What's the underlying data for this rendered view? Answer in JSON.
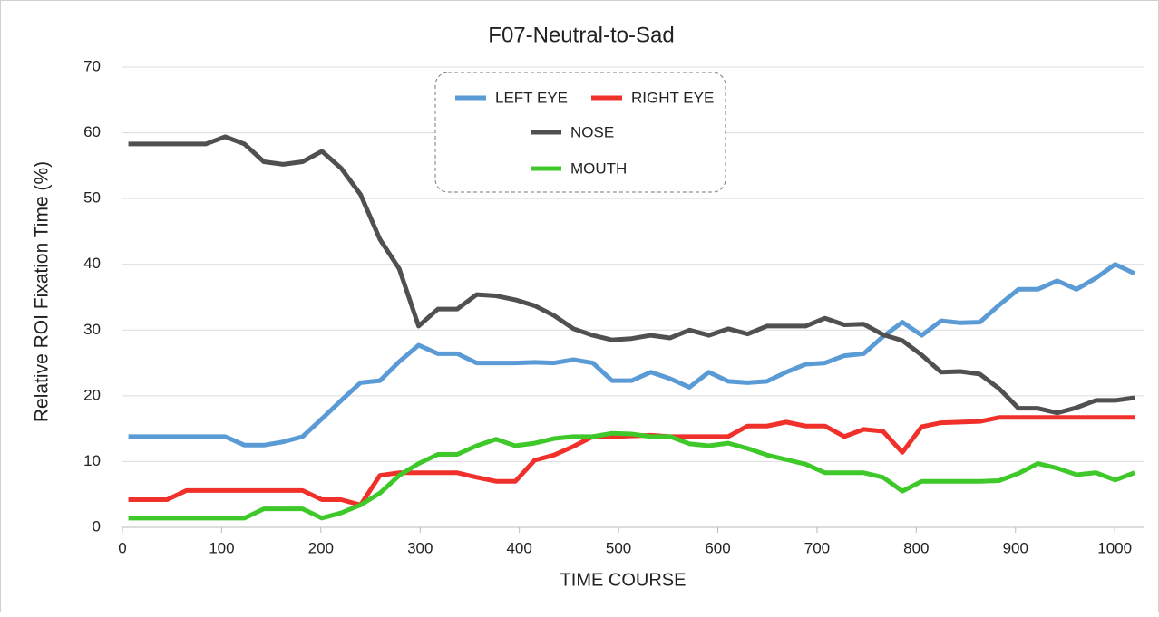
{
  "chart_data": {
    "type": "line",
    "title": "F07-Neutral-to-Sad",
    "x_label": "TIME  COURSE",
    "y_label": "Relative  ROI  Fixation  Time  (%)",
    "x": [
      6,
      25.5,
      45,
      64.5,
      84,
      103.5,
      123,
      142.5,
      162,
      181.5,
      201,
      220.5,
      240,
      259.5,
      279,
      298.5,
      318,
      337.5,
      357,
      376.5,
      396,
      415.5,
      435,
      454.5,
      474,
      493.5,
      513,
      532.5,
      552,
      571.5,
      591,
      610.5,
      630,
      649.5,
      669,
      688.5,
      708,
      727.5,
      747,
      766.5,
      786,
      805.5,
      825,
      844.5,
      864,
      883.5,
      903,
      922.5,
      942,
      961.5,
      981,
      1000.5,
      1020
    ],
    "series": [
      {
        "name": "LEFT EYE",
        "color": "#5b9bd5",
        "values": [
          13.8,
          13.8,
          13.8,
          13.8,
          13.8,
          13.8,
          12.5,
          12.5,
          13,
          13.8,
          16.5,
          19.3,
          22,
          22.3,
          25.2,
          27.7,
          26.4,
          26.4,
          25,
          25,
          25,
          25.1,
          25,
          25.5,
          25,
          22.3,
          22.3,
          23.6,
          22.6,
          21.3,
          23.6,
          22.2,
          22,
          22.2,
          23.6,
          24.8,
          25,
          26.1,
          26.4,
          29,
          31.2,
          29.2,
          31.4,
          31.1,
          31.2,
          33.8,
          36.2,
          36.2,
          37.5,
          36.2,
          37.9,
          40,
          38.6
        ]
      },
      {
        "name": "RIGHT EYE",
        "color": "#f0302a",
        "values": [
          4.2,
          4.2,
          4.2,
          5.6,
          5.6,
          5.6,
          5.6,
          5.6,
          5.6,
          5.6,
          4.2,
          4.2,
          3.4,
          7.9,
          8.3,
          8.3,
          8.3,
          8.3,
          7.6,
          7,
          7,
          10.2,
          11,
          12.3,
          13.8,
          13.8,
          13.9,
          14,
          13.8,
          13.8,
          13.8,
          13.8,
          15.4,
          15.4,
          16,
          15.4,
          15.4,
          13.8,
          14.9,
          14.6,
          11.4,
          15.3,
          15.9,
          16,
          16.1,
          16.7,
          16.7,
          16.7,
          16.7,
          16.7,
          16.7,
          16.7,
          16.7
        ]
      },
      {
        "name": "NOSE",
        "color": "#505050",
        "values": [
          58.3,
          58.3,
          58.3,
          58.3,
          58.3,
          59.4,
          58.3,
          55.6,
          55.2,
          55.6,
          57.2,
          54.6,
          50.6,
          43.8,
          39.3,
          30.6,
          33.2,
          33.2,
          35.4,
          35.2,
          34.6,
          33.7,
          32.2,
          30.2,
          29.2,
          28.5,
          28.7,
          29.2,
          28.8,
          30,
          29.2,
          30.2,
          29.4,
          30.6,
          30.6,
          30.6,
          31.8,
          30.8,
          30.9,
          29.3,
          28.4,
          26.2,
          23.6,
          23.7,
          23.3,
          21.1,
          18.1,
          18.1,
          17.4,
          18.2,
          19.3,
          19.3,
          19.7
        ]
      },
      {
        "name": "MOUTH",
        "color": "#3ec82a",
        "values": [
          1.4,
          1.4,
          1.4,
          1.4,
          1.4,
          1.4,
          1.4,
          2.8,
          2.8,
          2.8,
          1.4,
          2.2,
          3.4,
          5.2,
          7.9,
          9.7,
          11.1,
          11.1,
          12.4,
          13.4,
          12.4,
          12.8,
          13.5,
          13.8,
          13.8,
          14.3,
          14.2,
          13.8,
          13.8,
          12.7,
          12.4,
          12.8,
          12,
          11,
          10.3,
          9.6,
          8.3,
          8.3,
          8.3,
          7.6,
          5.5,
          7,
          7,
          7,
          7,
          7.1,
          8.2,
          9.7,
          9,
          8,
          8.3,
          7.2,
          8.3
        ]
      }
    ],
    "xlim": [
      0,
      1030
    ],
    "xticks": [
      0,
      100,
      200,
      300,
      400,
      500,
      600,
      700,
      800,
      900,
      1000
    ],
    "ylim": [
      0,
      70
    ],
    "yticks": [
      0,
      10,
      20,
      30,
      40,
      50,
      60,
      70
    ],
    "grid": true
  }
}
